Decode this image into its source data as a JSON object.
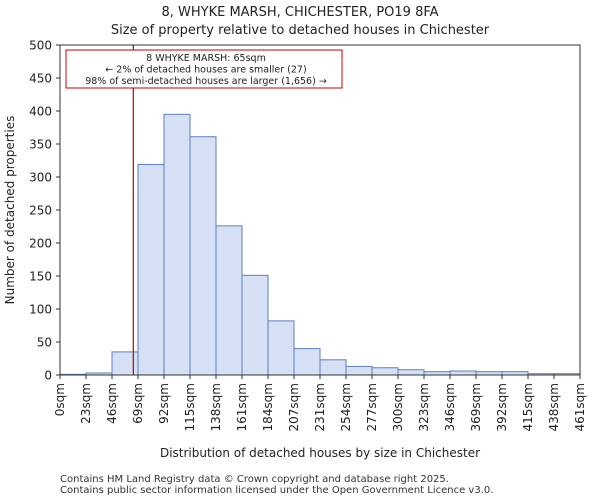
{
  "chart_data": {
    "type": "bar",
    "title": "8, WHYKE MARSH, CHICHESTER, PO19 8FA",
    "subtitle": "Size of property relative to detached houses in Chichester",
    "xlabel": "Distribution of detached houses by size in Chichester",
    "ylabel": "Number of detached properties",
    "ylim": [
      0,
      500
    ],
    "yticks": [
      0,
      50,
      100,
      150,
      200,
      250,
      300,
      350,
      400,
      450,
      500
    ],
    "bin_edges": [
      0,
      23,
      46,
      69,
      92,
      115,
      138,
      161,
      184,
      207,
      231,
      254,
      277,
      300,
      323,
      346,
      369,
      392,
      415,
      438,
      461
    ],
    "xtick_labels": [
      "0sqm",
      "23sqm",
      "46sqm",
      "69sqm",
      "92sqm",
      "115sqm",
      "138sqm",
      "161sqm",
      "184sqm",
      "207sqm",
      "231sqm",
      "254sqm",
      "277sqm",
      "300sqm",
      "323sqm",
      "346sqm",
      "369sqm",
      "392sqm",
      "415sqm",
      "438sqm",
      "461sqm"
    ],
    "values": [
      1,
      3,
      35,
      319,
      395,
      361,
      226,
      151,
      82,
      40,
      23,
      13,
      11,
      8,
      5,
      6,
      5,
      5,
      2,
      2
    ],
    "bar_color": "#d6e0f5",
    "bar_edge_color": "#5b7fbd",
    "marker": {
      "value": 65,
      "color": "#c00000",
      "lines": [
        "8 WHYKE MARSH: 65sqm",
        "← 2% of detached houses are smaller (27)",
        "98% of semi-detached houses are larger (1,656) →"
      ]
    }
  },
  "footer": {
    "line1": "Contains HM Land Registry data © Crown copyright and database right 2025.",
    "line2": "Contains public sector information licensed under the Open Government Licence v3.0."
  }
}
